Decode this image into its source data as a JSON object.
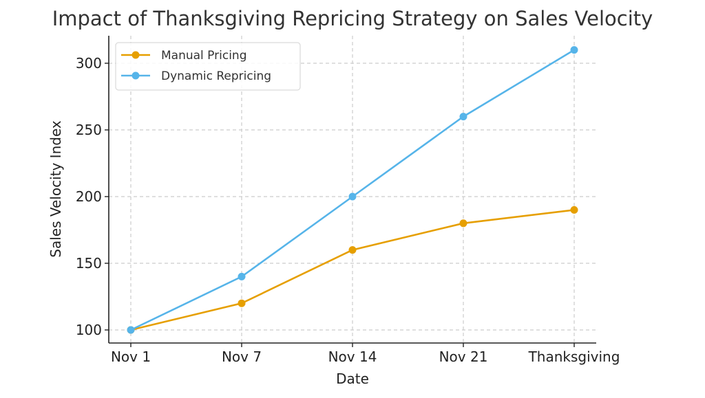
{
  "chart_data": {
    "type": "line",
    "title": "Impact of Thanksgiving Repricing Strategy on Sales Velocity",
    "xlabel": "Date",
    "ylabel": "Sales Velocity Index",
    "categories": [
      "Nov 1",
      "Nov 7",
      "Nov 14",
      "Nov 21",
      "Thanksgiving"
    ],
    "series": [
      {
        "name": "Manual Pricing",
        "color": "#E69F00",
        "values": [
          100,
          120,
          160,
          180,
          190
        ]
      },
      {
        "name": "Dynamic Repricing",
        "color": "#56B4E9",
        "values": [
          100,
          140,
          200,
          260,
          310
        ]
      }
    ],
    "yticks": [
      100,
      150,
      200,
      250,
      300
    ],
    "ylim": [
      90,
      320
    ],
    "grid": true,
    "legend_position": "upper left"
  }
}
